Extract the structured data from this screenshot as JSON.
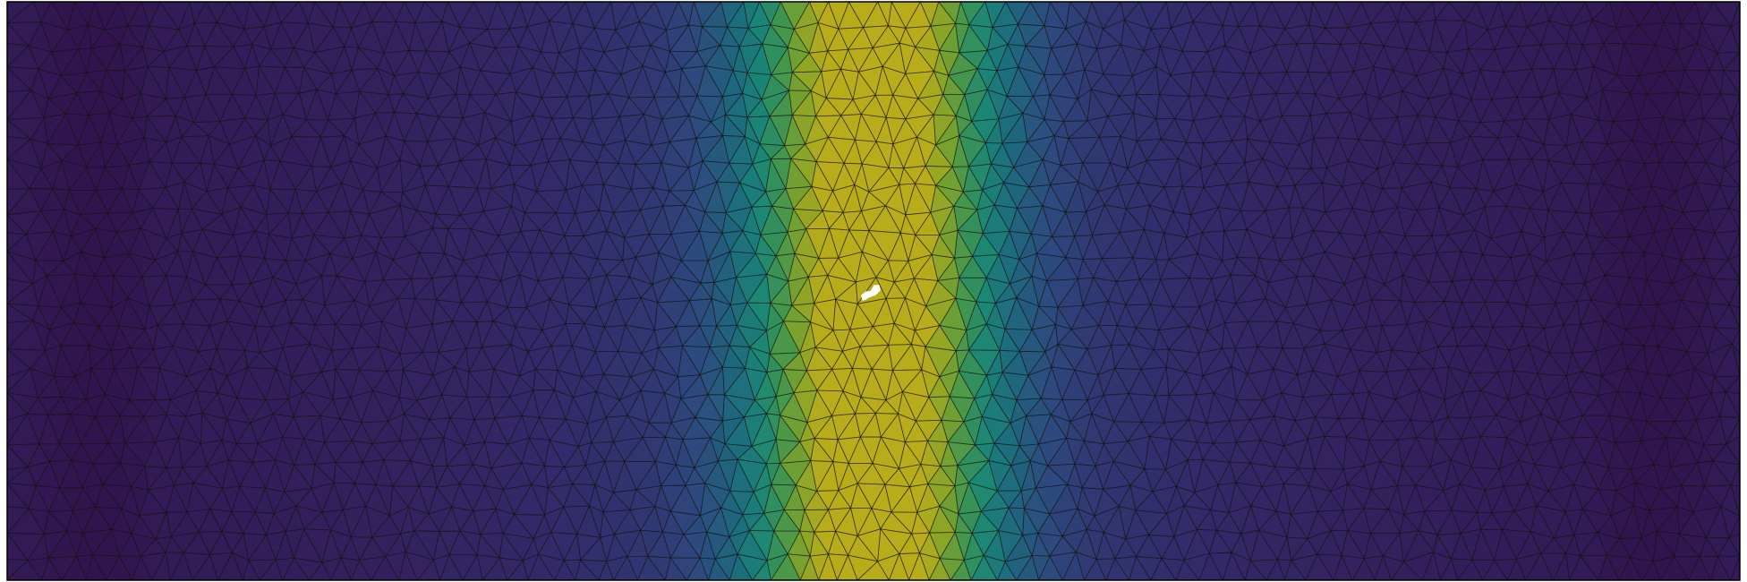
{
  "figure": {
    "kind": "finite-element triangular mesh with scalar field",
    "colormap": "viridis",
    "colormap_stops": [
      "#440154",
      "#482878",
      "#3e4989",
      "#31688e",
      "#26828e",
      "#1f9e89",
      "#35b779",
      "#6ece58",
      "#b5de2b",
      "#fde725"
    ],
    "display_colormap_stops": [
      "#2b0a3e",
      "#321650",
      "#332a6a",
      "#2d4a7e",
      "#1e6a7e",
      "#1a8676",
      "#3f9550",
      "#82a32a",
      "#b8ac1a"
    ],
    "mesh_edge_color": "#141414",
    "frame_color": "#000000",
    "background_color": "#ffffff",
    "field_profile": {
      "peak_x_fraction": 0.5,
      "peak_value": 1.0,
      "field_min_value": 0.04
    },
    "hole_marker": {
      "shape": "small irregular blob",
      "color": "#ffffff"
    }
  }
}
